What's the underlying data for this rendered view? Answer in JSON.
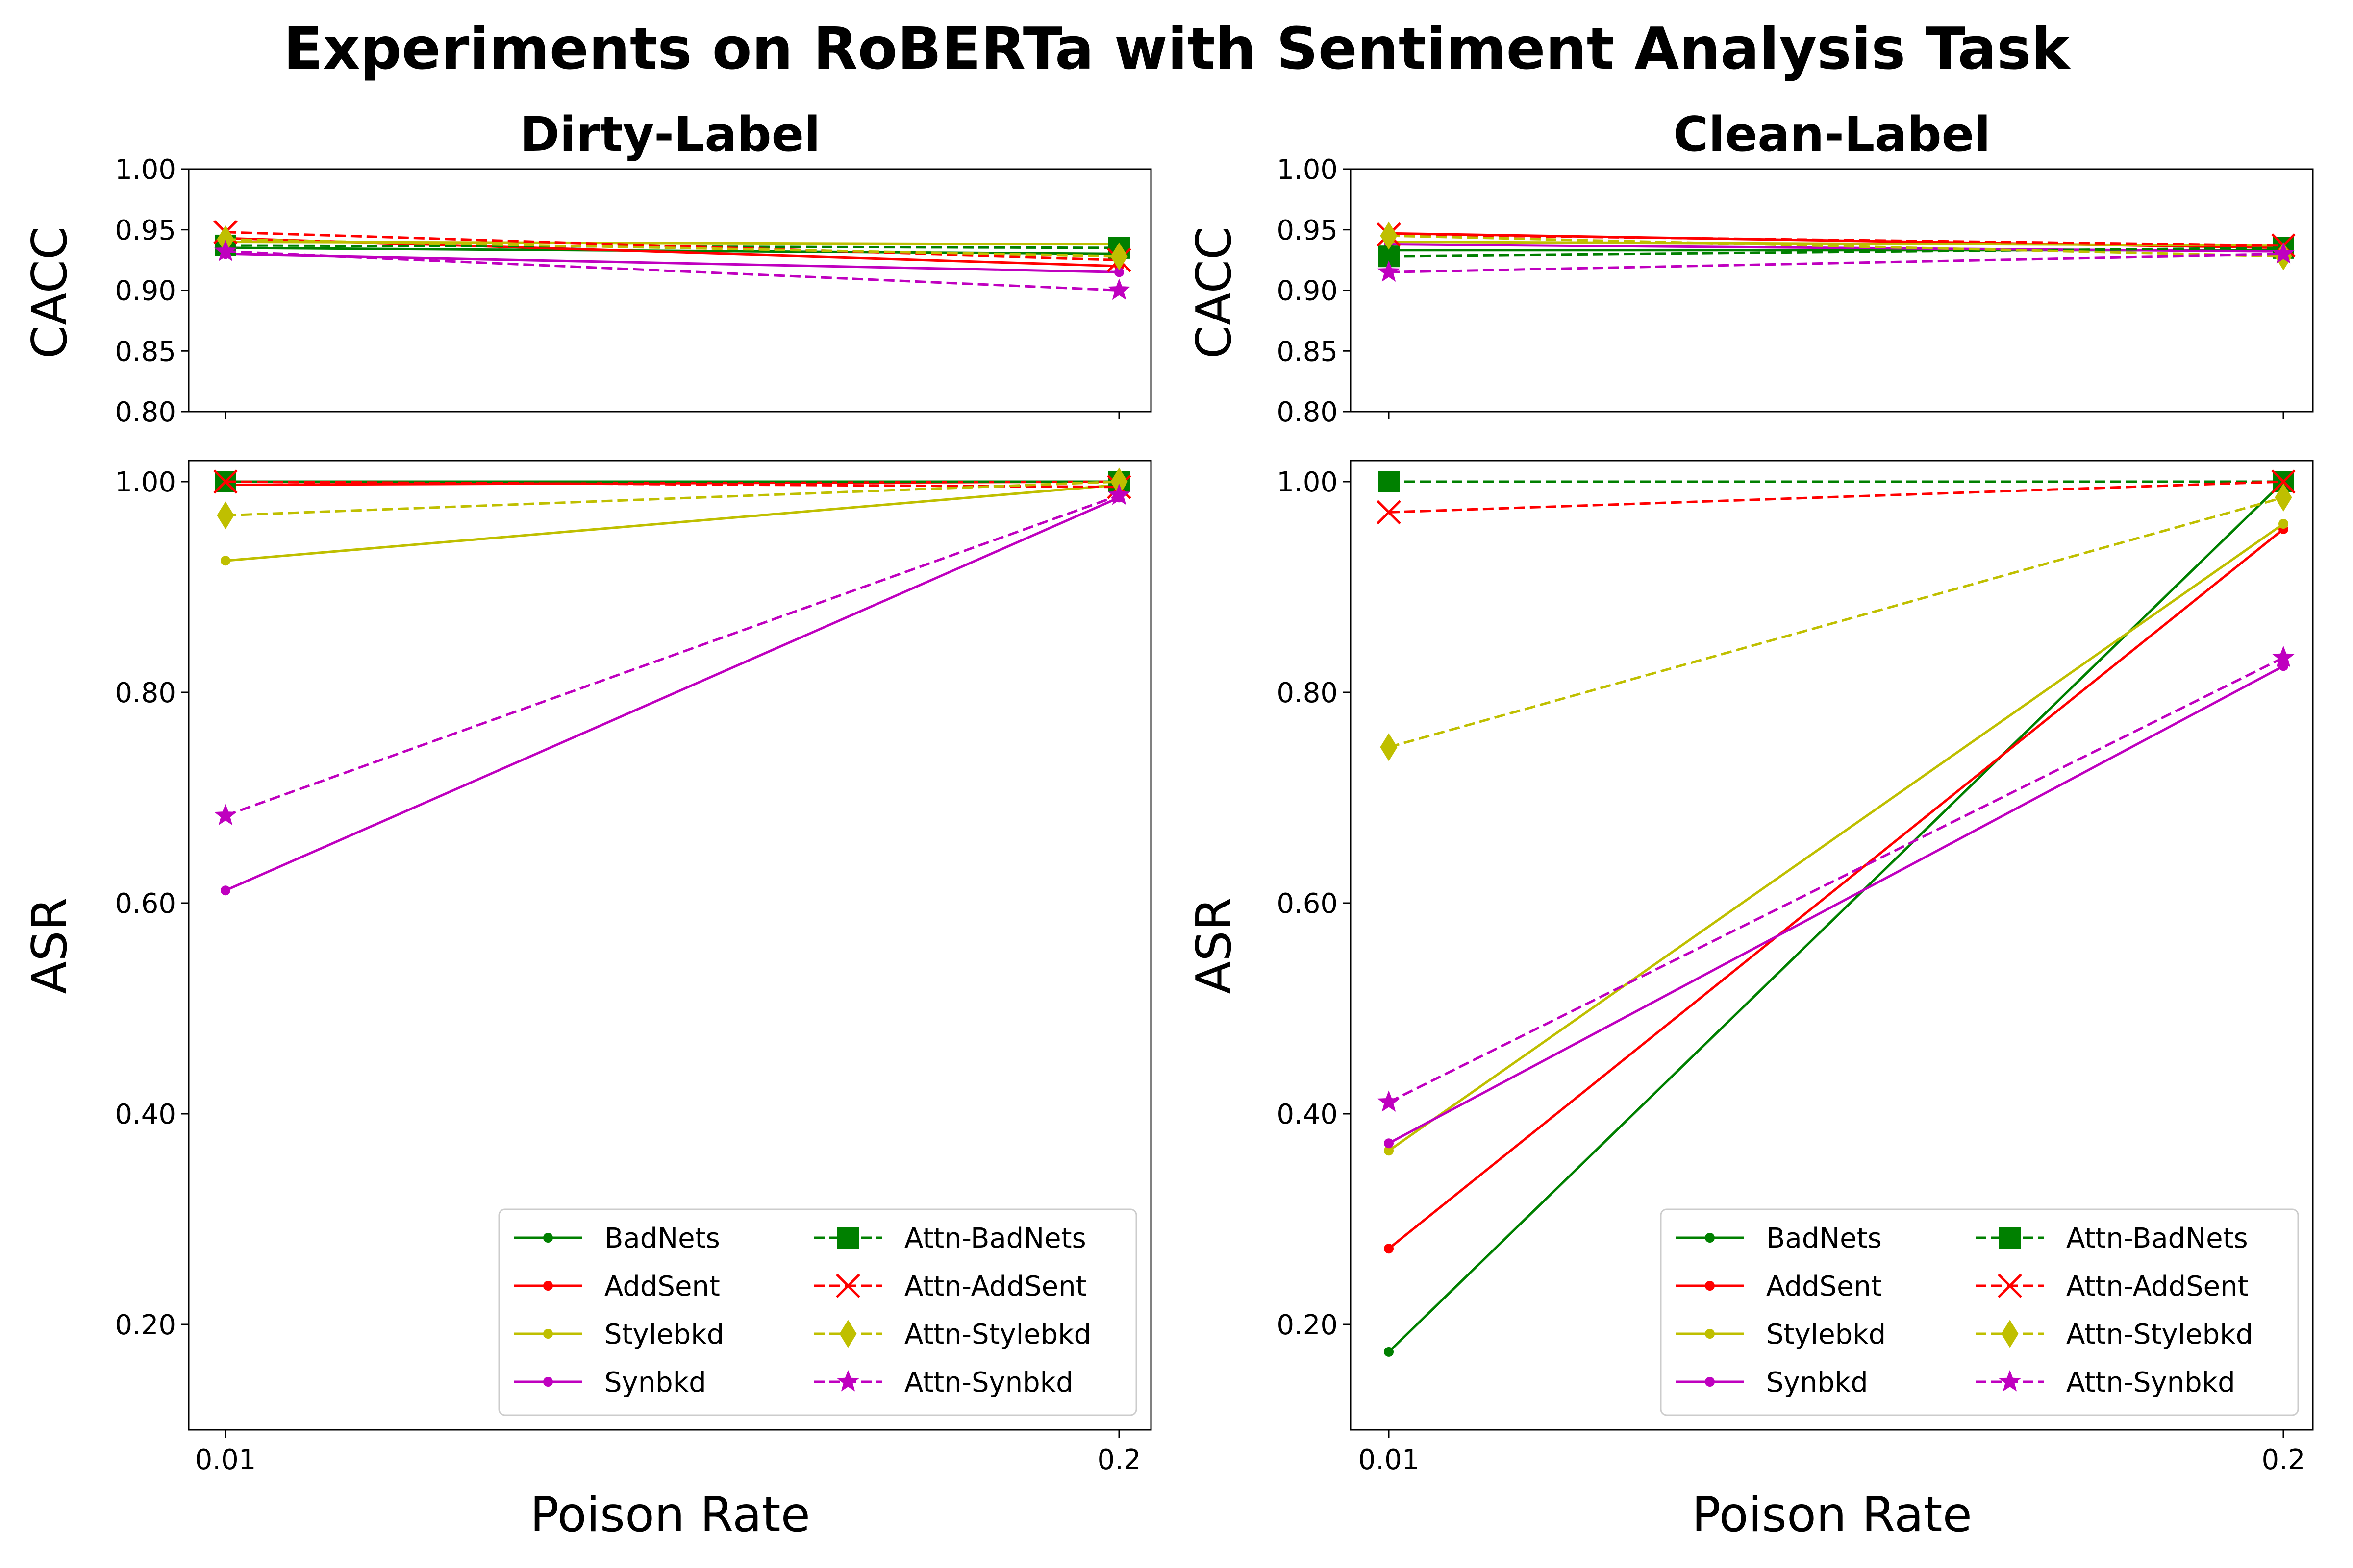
{
  "figure": {
    "suptitle": "Experiments on RoBERTa with Sentiment Analysis Task"
  },
  "x_labels": [
    "0.01",
    "0.2"
  ],
  "xlabel": "Poison Rate",
  "cacc_ylabel": "CACC",
  "asr_ylabel": "ASR",
  "cacc_ticks": [
    "0.80",
    "0.85",
    "0.90",
    "0.95",
    "1.00"
  ],
  "asr_ticks": [
    "0.20",
    "0.40",
    "0.60",
    "0.80",
    "1.00"
  ],
  "series_styles": [
    {
      "name": "BadNets",
      "color": "#008000",
      "dash": "solid",
      "marker": "dot"
    },
    {
      "name": "AddSent",
      "color": "#ff0000",
      "dash": "solid",
      "marker": "dot"
    },
    {
      "name": "Stylebkd",
      "color": "#bfbf00",
      "dash": "solid",
      "marker": "dot"
    },
    {
      "name": "Synbkd",
      "color": "#bf00bf",
      "dash": "solid",
      "marker": "dot"
    },
    {
      "name": "Attn-BadNets",
      "color": "#008000",
      "dash": "dashed",
      "marker": "square"
    },
    {
      "name": "Attn-AddSent",
      "color": "#ff0000",
      "dash": "dashed",
      "marker": "x"
    },
    {
      "name": "Attn-Stylebkd",
      "color": "#bfbf00",
      "dash": "dashed",
      "marker": "diamond"
    },
    {
      "name": "Attn-Synbkd",
      "color": "#bf00bf",
      "dash": "dashed",
      "marker": "star"
    }
  ],
  "chart_data": [
    {
      "type": "line",
      "title": "Dirty-Label",
      "xlabel": "",
      "ylabel": "CACC",
      "categories": [
        "0.01",
        "0.2"
      ],
      "ylim": [
        0.8,
        1.0
      ],
      "series": [
        {
          "name": "BadNets",
          "values": [
            0.935,
            0.93
          ]
        },
        {
          "name": "AddSent",
          "values": [
            0.943,
            0.92
          ]
        },
        {
          "name": "Stylebkd",
          "values": [
            0.94,
            0.938
          ]
        },
        {
          "name": "Synbkd",
          "values": [
            0.93,
            0.915
          ]
        },
        {
          "name": "Attn-BadNets",
          "values": [
            0.937,
            0.935
          ]
        },
        {
          "name": "Attn-AddSent",
          "values": [
            0.948,
            0.925
          ]
        },
        {
          "name": "Attn-Stylebkd",
          "values": [
            0.942,
            0.928
          ]
        },
        {
          "name": "Attn-Synbkd",
          "values": [
            0.932,
            0.9
          ]
        }
      ]
    },
    {
      "type": "line",
      "title": "Clean-Label",
      "xlabel": "",
      "ylabel": "CACC",
      "categories": [
        "0.01",
        "0.2"
      ],
      "ylim": [
        0.8,
        1.0
      ],
      "series": [
        {
          "name": "BadNets",
          "values": [
            0.933,
            0.933
          ]
        },
        {
          "name": "AddSent",
          "values": [
            0.947,
            0.935
          ]
        },
        {
          "name": "Stylebkd",
          "values": [
            0.94,
            0.937
          ]
        },
        {
          "name": "Synbkd",
          "values": [
            0.938,
            0.932
          ]
        },
        {
          "name": "Attn-BadNets",
          "values": [
            0.928,
            0.935
          ]
        },
        {
          "name": "Attn-AddSent",
          "values": [
            0.946,
            0.937
          ]
        },
        {
          "name": "Attn-Stylebkd",
          "values": [
            0.945,
            0.928
          ]
        },
        {
          "name": "Attn-Synbkd",
          "values": [
            0.915,
            0.93
          ]
        }
      ]
    },
    {
      "type": "line",
      "title": "",
      "xlabel": "Poison Rate",
      "ylabel": "ASR",
      "categories": [
        "0.01",
        "0.2"
      ],
      "ylim": [
        0.1,
        1.02
      ],
      "legend": "lower-right",
      "series": [
        {
          "name": "BadNets",
          "values": [
            1.0,
            1.0
          ]
        },
        {
          "name": "AddSent",
          "values": [
            0.997,
            1.0
          ]
        },
        {
          "name": "Stylebkd",
          "values": [
            0.925,
            0.997
          ]
        },
        {
          "name": "Synbkd",
          "values": [
            0.612,
            0.985
          ]
        },
        {
          "name": "Attn-BadNets",
          "values": [
            1.0,
            1.0
          ]
        },
        {
          "name": "Attn-AddSent",
          "values": [
            1.0,
            0.995
          ]
        },
        {
          "name": "Attn-Stylebkd",
          "values": [
            0.968,
            1.0
          ]
        },
        {
          "name": "Attn-Synbkd",
          "values": [
            0.683,
            0.987
          ]
        }
      ]
    },
    {
      "type": "line",
      "title": "",
      "xlabel": "Poison Rate",
      "ylabel": "ASR",
      "categories": [
        "0.01",
        "0.2"
      ],
      "ylim": [
        0.1,
        1.02
      ],
      "legend": "lower-right",
      "series": [
        {
          "name": "BadNets",
          "values": [
            0.174,
            1.0
          ]
        },
        {
          "name": "AddSent",
          "values": [
            0.272,
            0.955
          ]
        },
        {
          "name": "Stylebkd",
          "values": [
            0.365,
            0.96
          ]
        },
        {
          "name": "Synbkd",
          "values": [
            0.372,
            0.825
          ]
        },
        {
          "name": "Attn-BadNets",
          "values": [
            1.0,
            1.0
          ]
        },
        {
          "name": "Attn-AddSent",
          "values": [
            0.971,
            1.0
          ]
        },
        {
          "name": "Attn-Stylebkd",
          "values": [
            0.748,
            0.985
          ]
        },
        {
          "name": "Attn-Synbkd",
          "values": [
            0.411,
            0.833
          ]
        }
      ]
    }
  ]
}
